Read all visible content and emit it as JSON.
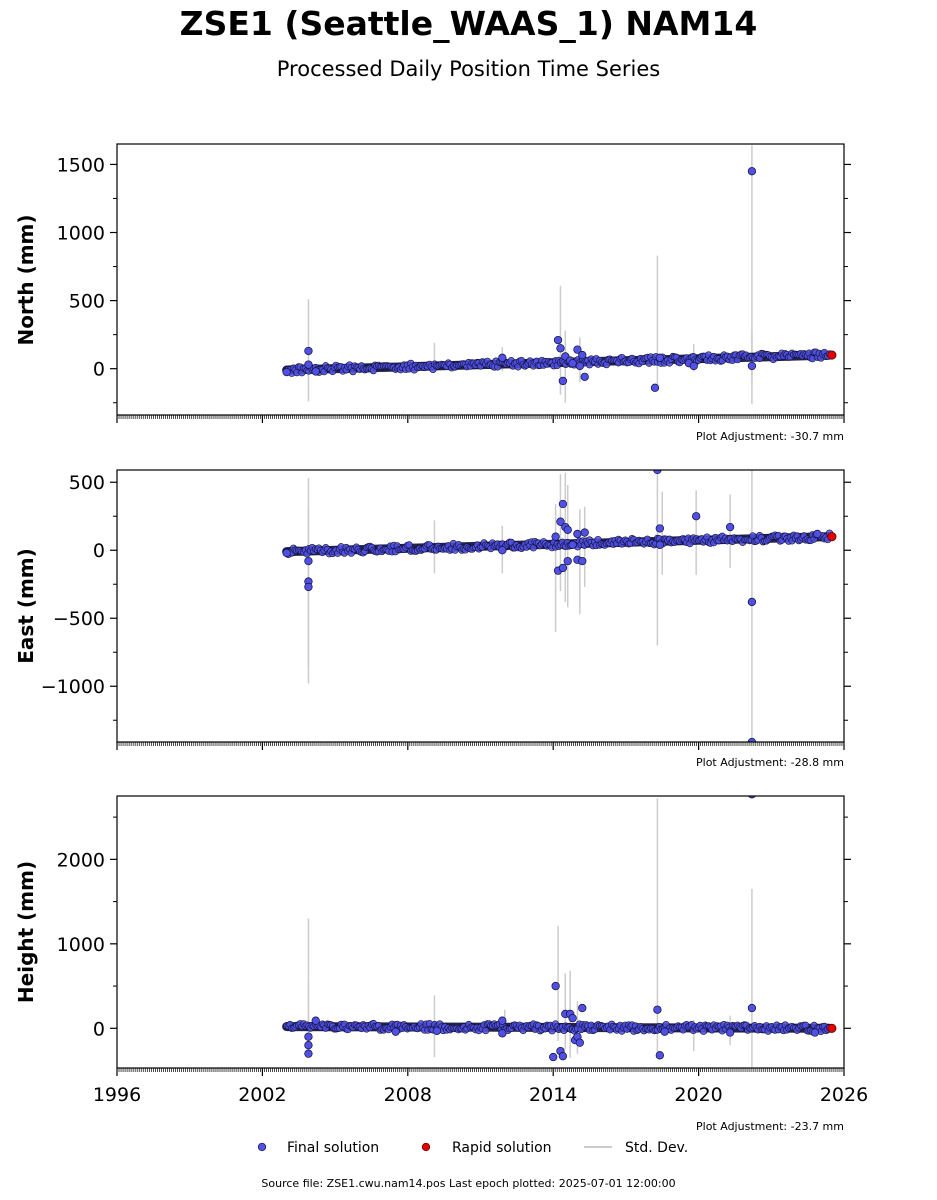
{
  "title": "ZSE1 (Seattle_WAAS_1) NAM14",
  "subtitle": "Processed Daily Position Time Series",
  "source_text": "Source file: ZSE1.cwu.nam14.pos  Last epoch plotted: 2025-07-01 12:00:00",
  "legend": {
    "final": "Final solution",
    "rapid": "Rapid solution",
    "std": "Std. Dev."
  },
  "colors": {
    "final": "#5050e6",
    "final_edge": "#111133",
    "rapid": "#e00000",
    "std": "#cccccc",
    "track": "#22224a"
  },
  "chart_data": [
    {
      "type": "scatter",
      "ylabel": "North (mm)",
      "adjustment": "Plot Adjustment: -30.7 mm",
      "xlim": [
        1996,
        2026
      ],
      "ylim": [
        -340,
        1650
      ],
      "yticks": [
        1500,
        1000,
        500,
        0
      ],
      "ytick_labels": [
        "1500",
        "1000",
        "500",
        "0"
      ],
      "trend": [
        [
          2003.0,
          -10
        ],
        [
          2025.4,
          100
        ]
      ],
      "points": [
        [
          2003.0,
          -25
        ],
        [
          2003.9,
          130
        ],
        [
          2003.9,
          30
        ],
        [
          2004.2,
          -20
        ],
        [
          2011.9,
          80
        ],
        [
          2014.2,
          210
        ],
        [
          2014.3,
          150
        ],
        [
          2014.4,
          -90
        ],
        [
          2014.5,
          90
        ],
        [
          2014.7,
          60
        ],
        [
          2014.8,
          40
        ],
        [
          2015.0,
          140
        ],
        [
          2015.2,
          100
        ],
        [
          2015.3,
          -60
        ],
        [
          2015.1,
          20
        ],
        [
          2018.2,
          -140
        ],
        [
          2018.4,
          80
        ],
        [
          2019.6,
          40
        ],
        [
          2019.8,
          20
        ],
        [
          2022.2,
          1450
        ],
        [
          2022.2,
          20
        ]
      ],
      "stddev": [
        [
          2003.9,
          -240,
          510
        ],
        [
          2009.1,
          -30,
          190
        ],
        [
          2011.9,
          -20,
          160
        ],
        [
          2014.3,
          -190,
          610
        ],
        [
          2014.5,
          -250,
          280
        ],
        [
          2015.1,
          -100,
          230
        ],
        [
          2018.3,
          -120,
          830
        ],
        [
          2019.8,
          -20,
          180
        ],
        [
          2022.2,
          -260,
          1640
        ],
        [
          2022.2,
          -100,
          280
        ]
      ],
      "rapid_points": [
        [
          2025.5,
          100
        ]
      ]
    },
    {
      "type": "scatter",
      "ylabel": "East (mm)",
      "adjustment": "Plot Adjustment: -28.8 mm",
      "xlim": [
        1996,
        2026
      ],
      "ylim": [
        -1410,
        590
      ],
      "yticks": [
        500,
        0,
        -500,
        -1000
      ],
      "ytick_labels": [
        "500",
        "0",
        "−500",
        "−1000"
      ],
      "trend": [
        [
          2003.0,
          -10
        ],
        [
          2025.4,
          100
        ]
      ],
      "points": [
        [
          2003.0,
          -20
        ],
        [
          2003.9,
          -80
        ],
        [
          2003.9,
          -230
        ],
        [
          2003.9,
          -270
        ],
        [
          2011.9,
          0
        ],
        [
          2014.1,
          100
        ],
        [
          2014.2,
          -150
        ],
        [
          2014.3,
          210
        ],
        [
          2014.4,
          340
        ],
        [
          2014.5,
          170
        ],
        [
          2014.6,
          150
        ],
        [
          2014.4,
          -130
        ],
        [
          2014.6,
          -80
        ],
        [
          2014.8,
          40
        ],
        [
          2015.0,
          120
        ],
        [
          2015.0,
          -70
        ],
        [
          2015.2,
          -80
        ],
        [
          2015.3,
          130
        ],
        [
          2018.3,
          590
        ],
        [
          2018.4,
          160
        ],
        [
          2018.4,
          40
        ],
        [
          2019.9,
          250
        ],
        [
          2021.3,
          170
        ],
        [
          2022.2,
          -380
        ],
        [
          2022.2,
          -1410
        ],
        [
          2024.9,
          120
        ]
      ],
      "stddev": [
        [
          2003.9,
          -980,
          530
        ],
        [
          2003.9,
          -850,
          320
        ],
        [
          2009.1,
          -170,
          220
        ],
        [
          2011.9,
          -170,
          180
        ],
        [
          2014.1,
          -600,
          340
        ],
        [
          2014.3,
          -300,
          560
        ],
        [
          2014.5,
          -380,
          570
        ],
        [
          2014.6,
          -420,
          480
        ],
        [
          2015.1,
          -470,
          300
        ],
        [
          2015.3,
          -270,
          320
        ],
        [
          2018.3,
          -700,
          570
        ],
        [
          2018.5,
          -180,
          430
        ],
        [
          2019.9,
          -180,
          440
        ],
        [
          2021.3,
          -130,
          410
        ],
        [
          2022.2,
          -1400,
          590
        ]
      ],
      "rapid_points": [
        [
          2025.5,
          100
        ]
      ]
    },
    {
      "type": "scatter",
      "ylabel": "Height (mm)",
      "adjustment": "Plot Adjustment: -23.7 mm",
      "xlim": [
        1996,
        2026
      ],
      "ylim": [
        -470,
        2750
      ],
      "yticks": [
        2000,
        1000,
        0
      ],
      "ytick_labels": [
        "2000",
        "1000",
        "0"
      ],
      "trend": [
        [
          2003.0,
          20
        ],
        [
          2025.4,
          0
        ]
      ],
      "points": [
        [
          2003.9,
          -100
        ],
        [
          2003.9,
          -200
        ],
        [
          2003.9,
          -300
        ],
        [
          2004.2,
          90
        ],
        [
          2007.5,
          -40
        ],
        [
          2009.2,
          -30
        ],
        [
          2011.9,
          90
        ],
        [
          2011.9,
          -60
        ],
        [
          2014.0,
          -340
        ],
        [
          2014.1,
          500
        ],
        [
          2014.3,
          -270
        ],
        [
          2014.4,
          -330
        ],
        [
          2014.5,
          170
        ],
        [
          2014.7,
          170
        ],
        [
          2014.8,
          120
        ],
        [
          2014.9,
          -140
        ],
        [
          2015.0,
          -100
        ],
        [
          2015.1,
          -170
        ],
        [
          2015.2,
          240
        ],
        [
          2018.3,
          220
        ],
        [
          2018.4,
          -320
        ],
        [
          2018.6,
          -40
        ],
        [
          2021.3,
          -50
        ],
        [
          2022.2,
          240
        ],
        [
          2022.2,
          2770
        ],
        [
          2024.8,
          -50
        ]
      ],
      "stddev": [
        [
          2003.9,
          -100,
          1300
        ],
        [
          2003.9,
          -200,
          540
        ],
        [
          2009.1,
          -340,
          390
        ],
        [
          2012.0,
          -100,
          220
        ],
        [
          2014.2,
          -150,
          1210
        ],
        [
          2014.5,
          -250,
          650
        ],
        [
          2014.7,
          -350,
          680
        ],
        [
          2015.0,
          -300,
          320
        ],
        [
          2018.3,
          -300,
          2720
        ],
        [
          2019.8,
          -270,
          100
        ],
        [
          2021.3,
          -200,
          150
        ],
        [
          2022.2,
          -460,
          1650
        ]
      ],
      "rapid_points": [
        [
          2025.5,
          0
        ]
      ]
    }
  ],
  "xticks": [
    1996,
    2002,
    2008,
    2014,
    2020,
    2026
  ],
  "xtick_labels": [
    "1996",
    "2002",
    "2008",
    "2014",
    "2020",
    "2026"
  ]
}
